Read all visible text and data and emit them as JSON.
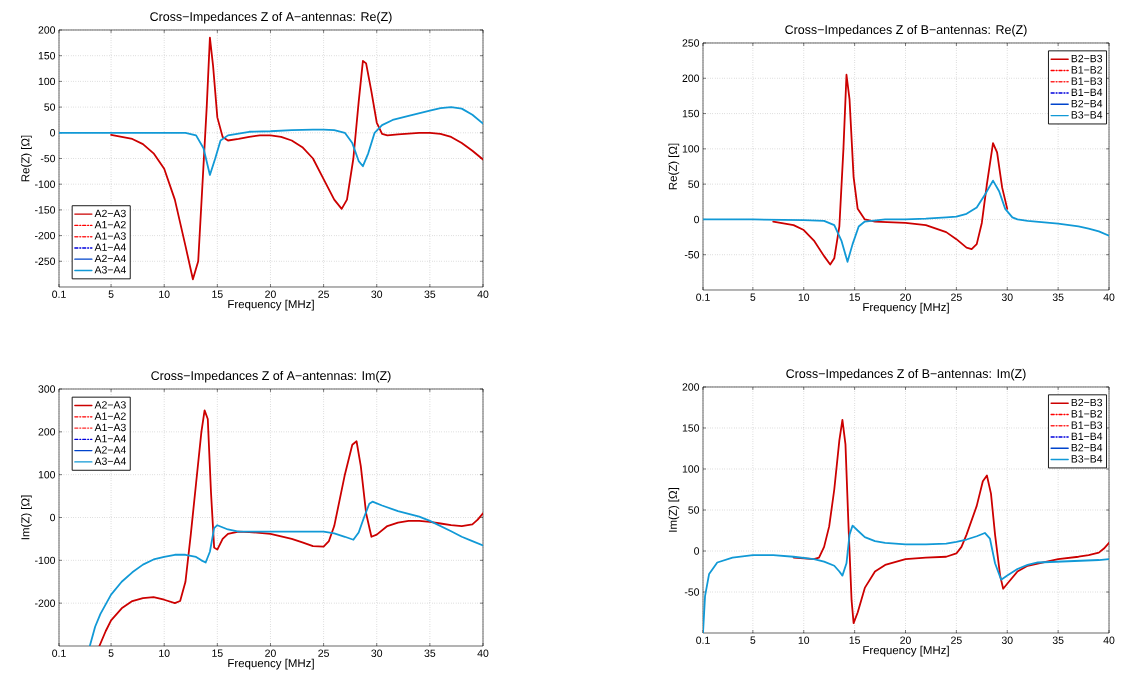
{
  "chart_data": [
    {
      "type": "line",
      "title": "Cross−Impedances Z of A−antennas: Re(Z)",
      "xlabel": "Frequency [MHz]",
      "ylabel": "Re(Z) [Ω]",
      "xlim": [
        0.1,
        40
      ],
      "ylim": [
        -300,
        200
      ],
      "xticks": [
        0.1,
        5,
        10,
        15,
        20,
        25,
        30,
        35,
        40
      ],
      "yticks": [
        -250,
        -200,
        -150,
        -100,
        -50,
        0,
        50,
        100,
        150,
        200
      ],
      "grid": true,
      "legend": "bottom left",
      "series": [
        {
          "name": "A2−A3",
          "color": "#cc0000",
          "line_style": "solid",
          "x": [
            5,
            7,
            8,
            9,
            10,
            11,
            12,
            12.7,
            13.2,
            13.6,
            14,
            14.3,
            14.6,
            15,
            15.5,
            16,
            17,
            18,
            19,
            20,
            21,
            22,
            23,
            24,
            25,
            26,
            26.7,
            27.2,
            27.8,
            28.3,
            28.7,
            29,
            29.5,
            30,
            30.5,
            31,
            32,
            34,
            35,
            36,
            37,
            38,
            39,
            40
          ],
          "values": [
            -4,
            -12,
            -22,
            -40,
            -70,
            -130,
            -220,
            -285,
            -250,
            -100,
            50,
            185,
            130,
            30,
            -8,
            -15,
            -12,
            -8,
            -5,
            -5,
            -8,
            -15,
            -28,
            -50,
            -90,
            -130,
            -148,
            -130,
            -50,
            60,
            140,
            135,
            80,
            20,
            -2,
            -5,
            -3,
            0,
            0,
            -2,
            -8,
            -20,
            -35,
            -52
          ]
        },
        {
          "name": "A1−A2",
          "color": "#ff0000",
          "line_style": "dashdot"
        },
        {
          "name": "A1−A3",
          "color": "#ff2a2a",
          "line_style": "dashdot"
        },
        {
          "name": "A1−A4",
          "color": "#0000dd",
          "line_style": "dashdot"
        },
        {
          "name": "A2−A4",
          "color": "#0044cc",
          "line_style": "solid"
        },
        {
          "name": "A3−A4",
          "color": "#1199d6",
          "line_style": "solid",
          "x": [
            0.1,
            5,
            10,
            12,
            13,
            13.7,
            14.3,
            14.8,
            15.3,
            16,
            18,
            20,
            22,
            24,
            25,
            26,
            27,
            27.7,
            28.3,
            28.7,
            29.2,
            29.8,
            30.5,
            31.5,
            33,
            35,
            36,
            37,
            38,
            39,
            40
          ],
          "values": [
            0,
            0,
            0,
            0,
            -5,
            -30,
            -82,
            -50,
            -15,
            -5,
            2,
            3,
            5,
            6,
            6,
            5,
            0,
            -20,
            -55,
            -65,
            -40,
            0,
            15,
            25,
            33,
            43,
            48,
            50,
            47,
            35,
            18
          ]
        }
      ]
    },
    {
      "type": "line",
      "title": "Cross−Impedances Z of B−antennas: Re(Z)",
      "xlabel": "Frequency [MHz]",
      "ylabel": "Re(Z) [Ω]",
      "xlim": [
        0.1,
        40
      ],
      "ylim": [
        -100,
        250
      ],
      "xticks": [
        0.1,
        5,
        10,
        15,
        20,
        25,
        30,
        35,
        40
      ],
      "yticks": [
        -50,
        0,
        50,
        100,
        150,
        200,
        250
      ],
      "grid": true,
      "legend": "top right",
      "series": [
        {
          "name": "B2−B3",
          "color": "#cc0000",
          "line_style": "solid",
          "x": [
            7,
            9,
            10,
            11,
            12,
            12.6,
            13,
            13.5,
            13.9,
            14.2,
            14.5,
            14.9,
            15.3,
            16,
            17,
            20,
            22,
            24,
            25,
            26,
            26.5,
            27,
            27.5,
            28,
            28.6,
            29,
            29.5,
            30
          ],
          "values": [
            -3,
            -8,
            -15,
            -30,
            -52,
            -64,
            -55,
            -10,
            100,
            205,
            170,
            60,
            15,
            0,
            -3,
            -5,
            -8,
            -18,
            -28,
            -40,
            -42,
            -35,
            -5,
            50,
            108,
            95,
            45,
            15
          ]
        },
        {
          "name": "B1−B2",
          "color": "#ff0000",
          "line_style": "dashdot"
        },
        {
          "name": "B1−B3",
          "color": "#ff2a2a",
          "line_style": "dashdot"
        },
        {
          "name": "B1−B4",
          "color": "#0000dd",
          "line_style": "dashdot"
        },
        {
          "name": "B2−B4",
          "color": "#0044cc",
          "line_style": "solid"
        },
        {
          "name": "B3−B4",
          "color": "#1199d6",
          "line_style": "solid",
          "x": [
            0.1,
            5,
            10,
            12,
            13,
            13.7,
            14.3,
            14.8,
            15.4,
            16,
            18,
            20,
            22,
            24,
            25,
            26,
            27,
            27.8,
            28.6,
            29.2,
            29.8,
            30.5,
            31,
            32,
            35,
            37,
            38,
            39,
            40
          ],
          "values": [
            0,
            0,
            -1,
            -2,
            -8,
            -30,
            -60,
            -35,
            -10,
            -3,
            0,
            0,
            1,
            3,
            4,
            8,
            17,
            35,
            55,
            40,
            15,
            3,
            0,
            -2,
            -6,
            -10,
            -13,
            -17,
            -23
          ]
        }
      ]
    },
    {
      "type": "line",
      "title": "Cross−Impedances Z of A−antennas: Im(Z)",
      "xlabel": "Frequency [MHz]",
      "ylabel": "Im(Z) [Ω]",
      "xlim": [
        0.1,
        40
      ],
      "ylim": [
        -300,
        300
      ],
      "xticks": [
        0.1,
        5,
        10,
        15,
        20,
        25,
        30,
        35,
        40
      ],
      "yticks": [
        -200,
        -100,
        0,
        100,
        200,
        300
      ],
      "grid": true,
      "legend": "top left",
      "series": [
        {
          "name": "A2−A3",
          "color": "#cc0000",
          "line_style": "solid",
          "x": [
            3.9,
            4.5,
            5,
            6,
            7,
            8,
            9,
            10,
            11,
            11.5,
            12,
            12.5,
            13,
            13.5,
            13.8,
            14.1,
            14.4,
            14.7,
            15,
            15.5,
            16,
            17,
            18,
            20,
            22,
            23,
            24,
            25,
            25.5,
            26,
            27,
            27.7,
            28.1,
            28.5,
            29,
            29.5,
            30,
            31,
            32,
            33,
            34,
            35,
            36,
            37,
            38,
            39,
            39.5,
            40
          ],
          "values": [
            -300,
            -265,
            -240,
            -212,
            -195,
            -188,
            -186,
            -192,
            -200,
            -195,
            -150,
            -40,
            80,
            200,
            250,
            230,
            60,
            -70,
            -75,
            -50,
            -38,
            -33,
            -34,
            -38,
            -50,
            -58,
            -67,
            -68,
            -55,
            -20,
            100,
            170,
            178,
            120,
            10,
            -45,
            -40,
            -20,
            -12,
            -8,
            -8,
            -10,
            -14,
            -18,
            -20,
            -16,
            -5,
            10
          ]
        },
        {
          "name": "A1−A2",
          "color": "#ff0000",
          "line_style": "dashdot"
        },
        {
          "name": "A1−A3",
          "color": "#ff2a2a",
          "line_style": "dashdot"
        },
        {
          "name": "A1−A4",
          "color": "#0000dd",
          "line_style": "dashdot"
        },
        {
          "name": "A2−A4",
          "color": "#0044cc",
          "line_style": "solid"
        },
        {
          "name": "A3−A4",
          "color": "#1199d6",
          "line_style": "solid",
          "x": [
            3,
            3.5,
            4,
            5,
            6,
            7,
            8,
            9,
            10,
            11,
            12,
            13,
            13.5,
            13.9,
            14.3,
            14.7,
            15,
            16,
            17,
            20,
            23,
            25,
            26,
            27,
            27.8,
            28.3,
            28.8,
            29.3,
            29.6,
            30.5,
            32,
            34,
            35,
            36,
            37,
            38,
            39,
            40
          ],
          "values": [
            -300,
            -255,
            -225,
            -180,
            -150,
            -128,
            -110,
            -98,
            -92,
            -87,
            -87,
            -92,
            -100,
            -105,
            -80,
            -25,
            -18,
            -28,
            -33,
            -33,
            -33,
            -33,
            -37,
            -45,
            -52,
            -35,
            0,
            32,
            37,
            28,
            15,
            2,
            -8,
            -20,
            -32,
            -45,
            -55,
            -65
          ]
        }
      ]
    },
    {
      "type": "line",
      "title": "Cross−Impedances Z of B−antennas: Im(Z)",
      "xlabel": "Frequency [MHz]",
      "ylabel": "Im(Z) [Ω]",
      "xlim": [
        0.1,
        40
      ],
      "ylim": [
        -100,
        200
      ],
      "xticks": [
        0.1,
        5,
        10,
        15,
        20,
        25,
        30,
        35,
        40
      ],
      "yticks": [
        -50,
        0,
        50,
        100,
        150,
        200
      ],
      "grid": true,
      "legend": "top right",
      "series": [
        {
          "name": "B2−B3",
          "color": "#cc0000",
          "line_style": "solid",
          "x": [
            9,
            11,
            11.5,
            12,
            12.5,
            13,
            13.5,
            13.8,
            14.1,
            14.4,
            14.7,
            14.9,
            15.3,
            16,
            17,
            18,
            20,
            22,
            24,
            25,
            25.5,
            26,
            27,
            27.6,
            28,
            28.4,
            28.8,
            29.3,
            29.6,
            30,
            31,
            32,
            35,
            37,
            38,
            39,
            39.5,
            40
          ],
          "values": [
            -8,
            -10,
            -8,
            5,
            30,
            75,
            135,
            160,
            130,
            30,
            -60,
            -88,
            -75,
            -45,
            -25,
            -17,
            -10,
            -8,
            -7,
            -3,
            5,
            20,
            55,
            85,
            92,
            70,
            20,
            -30,
            -46,
            -40,
            -25,
            -18,
            -10,
            -7,
            -5,
            -2,
            3,
            10
          ]
        },
        {
          "name": "B1−B2",
          "color": "#ff0000",
          "line_style": "dashdot"
        },
        {
          "name": "B1−B3",
          "color": "#ff2a2a",
          "line_style": "dashdot"
        },
        {
          "name": "B1−B4",
          "color": "#0000dd",
          "line_style": "dashdot"
        },
        {
          "name": "B2−B4",
          "color": "#0044cc",
          "line_style": "solid"
        },
        {
          "name": "B3−B4",
          "color": "#1199d6",
          "line_style": "solid",
          "x": [
            0.1,
            0.3,
            0.7,
            1.5,
            3,
            5,
            7,
            9,
            11,
            12,
            13,
            13.5,
            13.8,
            14.2,
            14.5,
            14.8,
            15.3,
            16,
            17,
            18,
            20,
            22,
            24,
            25,
            26,
            27,
            27.8,
            28.3,
            28.8,
            29.4,
            30,
            31,
            32,
            33,
            35,
            37,
            39,
            40
          ],
          "values": [
            -100,
            -55,
            -28,
            -14,
            -8,
            -5,
            -5,
            -7,
            -10,
            -13,
            -18,
            -25,
            -30,
            -15,
            20,
            31,
            25,
            17,
            12,
            10,
            8,
            8,
            9,
            11,
            14,
            18,
            22,
            15,
            -15,
            -35,
            -30,
            -22,
            -17,
            -14,
            -13,
            -12,
            -11,
            -10
          ]
        }
      ]
    }
  ]
}
